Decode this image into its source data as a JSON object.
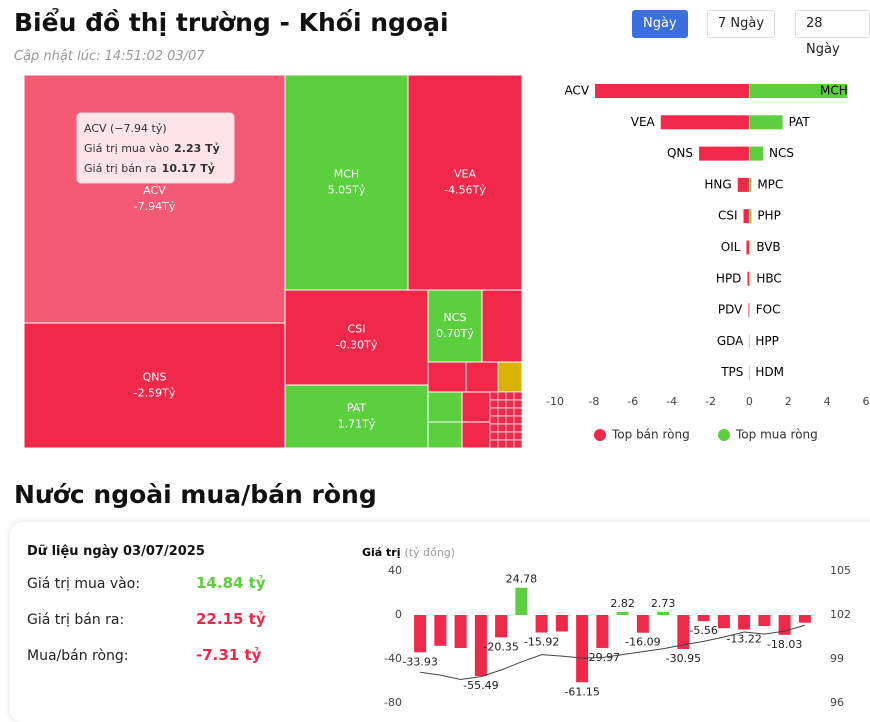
{
  "header": {
    "title": "Biểu đồ thị trường - Khối ngoại",
    "updated": "Cập nhật lúc: 14:51:02 03/07"
  },
  "tabs": [
    "Ngày",
    "7 Ngày",
    "28 Ngày"
  ],
  "active_tab": "Ngày",
  "treemap": {
    "type": "treemap",
    "color_positive": "#5ccf3e",
    "color_negative": "#f0284a",
    "tiles": [
      {
        "name": "ACV",
        "value": -7.94,
        "value_label": "-7.94Tỷ"
      },
      {
        "name": "MCH",
        "value": 5.05,
        "value_label": "5.05Tỷ"
      },
      {
        "name": "VEA",
        "value": -4.56,
        "value_label": "-4.56Tỷ"
      },
      {
        "name": "QNS",
        "value": -2.59,
        "value_label": "-2.59Tỷ"
      },
      {
        "name": "CSI",
        "value": -0.3,
        "value_label": "-0.30Tỷ"
      },
      {
        "name": "NCS",
        "value": 0.7,
        "value_label": "0.70Tỷ"
      },
      {
        "name": "PAT",
        "value": 1.71,
        "value_label": "1.71Tỷ"
      }
    ],
    "tooltip": {
      "title": "ACV (−7.94 tỷ)",
      "buy_label": "Giá trị mua vào",
      "buy": "2.23 Tỷ",
      "sell_label": "Giá trị bán ra",
      "sell": "10.17 Tỷ"
    }
  },
  "chart_data": [
    {
      "type": "bar",
      "orientation": "horizontal",
      "categories_left": [
        "ACV",
        "VEA",
        "QNS",
        "HNG",
        "CSI",
        "OIL",
        "HPD",
        "PDV",
        "GDA",
        "TPS"
      ],
      "categories_right": [
        "MCH",
        "PAT",
        "NCS",
        "MPC",
        "PHP",
        "BVB",
        "HBC",
        "FOC",
        "HPP",
        "HDM"
      ],
      "series": [
        {
          "name": "Top bán ròng",
          "color": "#f0284a",
          "values": [
            -7.94,
            -4.56,
            -2.59,
            -0.6,
            -0.3,
            -0.15,
            -0.1,
            -0.05,
            0,
            0
          ]
        },
        {
          "name": "Top mua ròng",
          "color": "#5ccf3e",
          "values": [
            5.05,
            1.71,
            0.7,
            0.1,
            0.1,
            0.05,
            0.05,
            0.02,
            0,
            0
          ]
        }
      ],
      "xlim": [
        -10,
        6
      ],
      "xticks": [
        -10,
        -8,
        -6,
        -4,
        -2,
        0,
        2,
        4,
        6
      ]
    },
    {
      "type": "combo",
      "y_label": "Giá trị",
      "y_unit": "(tỷ đồng)",
      "ylim": [
        -80,
        40
      ],
      "yticks": [
        -80,
        -40,
        0,
        40
      ],
      "y2lim": [
        96,
        105
      ],
      "y2ticks": [
        96,
        99,
        102,
        105
      ],
      "series": [
        {
          "type": "bar",
          "color_positive": "#5ccf3e",
          "color_negative": "#f0284a",
          "values": [
            -33.93,
            -28,
            -30,
            -55.49,
            -20.35,
            24.78,
            -15.92,
            -15,
            -61.15,
            -29.97,
            2.82,
            -16.09,
            2.73,
            -30.95,
            -5.56,
            -12,
            -13.22,
            -10,
            -18.03,
            -7
          ],
          "value_labels": [
            "-33.93",
            null,
            null,
            "-55.49",
            "-20.35",
            "24.78",
            "-15.92",
            null,
            "-61.15",
            "-29.97",
            "2.82",
            "-16.09",
            "2.73",
            "-30.95",
            "-5.56",
            null,
            "-13.22",
            null,
            "-18.03",
            null
          ]
        },
        {
          "type": "line",
          "axis": "y2",
          "color": "#444444",
          "values": [
            98.1,
            97.9,
            97.6,
            97.8,
            98.25,
            98.8,
            99.3,
            99.2,
            99.07,
            99.1,
            99.3,
            99.5,
            99.7,
            99.96,
            100.2,
            100.5,
            100.84,
            100.7,
            100.9,
            101.3
          ]
        }
      ]
    }
  ],
  "section_title": "Nước ngoài mua/bán ròng",
  "summary": {
    "date": "Dữ liệu ngày 03/07/2025",
    "rows": [
      {
        "label": "Giá trị mua vào:",
        "value": "14.84 tỷ",
        "color": "#5ccf3e"
      },
      {
        "label": "Giá trị bán ra:",
        "value": "22.15 tỷ",
        "color": "#f0284a"
      },
      {
        "label": "Mua/bán ròng:",
        "value": "-7.31 tỷ",
        "color": "#f0284a"
      }
    ]
  }
}
